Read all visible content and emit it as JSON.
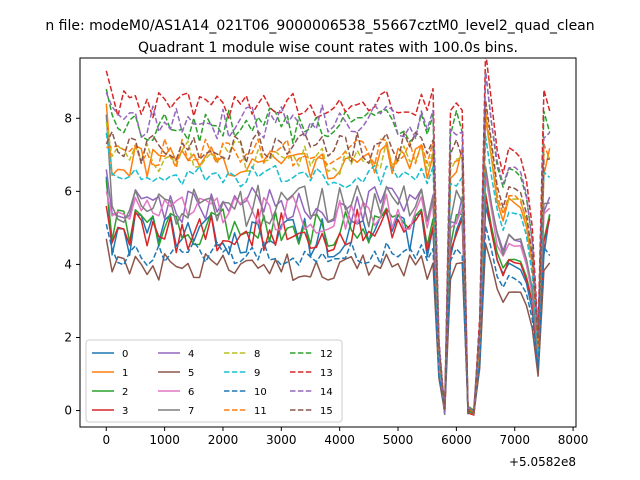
{
  "figure": {
    "suptitle": "n file: modeM0/AS1A14_021T06_9000006538_55667cztM0_level2_quad_clean",
    "offset_label": "+5.0582e8"
  },
  "chart_data": {
    "type": "line",
    "title": "Quadrant 1 module wise count rates with 100.0s bins.",
    "xlabel": "",
    "ylabel": "",
    "xlim": [
      -450,
      8050
    ],
    "ylim": [
      -0.45,
      9.65
    ],
    "xticks": [
      0,
      1000,
      2000,
      3000,
      4000,
      5000,
      6000,
      7000,
      8000
    ],
    "xtick_labels": [
      "0",
      "1000",
      "2000",
      "3000",
      "4000",
      "5000",
      "6000",
      "7000",
      "8000"
    ],
    "yticks": [
      0,
      2,
      4,
      6,
      8
    ],
    "ytick_labels": [
      "0",
      "2",
      "4",
      "6",
      "8"
    ],
    "grid": false,
    "legend_position": "lower-left",
    "legend_columns": 4,
    "x": {
      "start": 0,
      "step": 100,
      "count": 77
    },
    "profile": [
      0,
      0,
      0,
      0,
      0,
      0,
      0,
      0,
      0,
      0,
      0,
      0,
      0,
      0,
      0,
      0,
      0,
      0,
      0,
      0,
      0,
      0,
      0,
      0,
      0,
      0,
      0,
      0,
      0,
      0,
      0,
      0,
      0,
      0,
      0,
      0,
      0,
      0,
      0,
      0,
      0,
      0,
      0,
      0,
      0,
      0,
      0,
      0,
      0,
      0,
      0,
      0,
      0,
      0,
      0,
      0,
      1,
      1,
      1,
      0,
      0,
      0,
      1,
      1,
      1,
      1,
      1,
      1,
      1,
      1,
      1,
      1,
      1,
      1,
      1,
      0,
      0
    ],
    "profile_values": [
      0.88,
      0.2,
      0,
      0,
      0,
      0.25,
      1.0,
      0.86,
      0.72,
      0.66,
      0.72,
      0.72,
      0.7,
      0.64,
      0.5,
      0.22,
      0.2
    ],
    "series": [
      {
        "name": "0",
        "color": "#1f77b4",
        "style": "solid",
        "base": 4.8,
        "amp": 0.28,
        "start": 6.4
      },
      {
        "name": "1",
        "color": "#ff7f0e",
        "style": "solid",
        "base": 6.8,
        "amp": 0.22,
        "start": 8.4
      },
      {
        "name": "2",
        "color": "#2ca02c",
        "style": "solid",
        "base": 5.0,
        "amp": 0.25,
        "start": 6.3
      },
      {
        "name": "3",
        "color": "#d62728",
        "style": "solid",
        "base": 4.9,
        "amp": 0.28,
        "start": 5.6
      },
      {
        "name": "4",
        "color": "#9467bd",
        "style": "solid",
        "base": 5.6,
        "amp": 0.24,
        "start": 6.6
      },
      {
        "name": "5",
        "color": "#8c564b",
        "style": "solid",
        "base": 3.9,
        "amp": 0.18,
        "start": 4.7
      },
      {
        "name": "6",
        "color": "#e377c2",
        "style": "solid",
        "base": 5.4,
        "amp": 0.25,
        "start": 6.0
      },
      {
        "name": "7",
        "color": "#7f7f7f",
        "style": "solid",
        "base": 5.6,
        "amp": 0.26,
        "start": 8.1
      },
      {
        "name": "8",
        "color": "#bcbd22",
        "style": "dashed",
        "base": 6.9,
        "amp": 0.22,
        "start": 7.9
      },
      {
        "name": "9",
        "color": "#17becf",
        "style": "dashed",
        "base": 6.4,
        "amp": 0.14,
        "start": 7.6
      },
      {
        "name": "10",
        "color": "#1f77b4",
        "style": "dashed",
        "base": 4.3,
        "amp": 0.15,
        "start": 5.1
      },
      {
        "name": "11",
        "color": "#ff7f0e",
        "style": "dashed",
        "base": 7.0,
        "amp": 0.2,
        "start": 7.2
      },
      {
        "name": "12",
        "color": "#2ca02c",
        "style": "dashed",
        "base": 7.8,
        "amp": 0.22,
        "start": 8.8
      },
      {
        "name": "13",
        "color": "#d62728",
        "style": "dashed",
        "base": 8.4,
        "amp": 0.18,
        "start": 9.3
      },
      {
        "name": "14",
        "color": "#9467bd",
        "style": "dashed",
        "base": 7.9,
        "amp": 0.22,
        "start": 8.7
      },
      {
        "name": "15",
        "color": "#8c564b",
        "style": "dashed",
        "base": 7.2,
        "amp": 0.2,
        "start": 7.3
      }
    ]
  }
}
